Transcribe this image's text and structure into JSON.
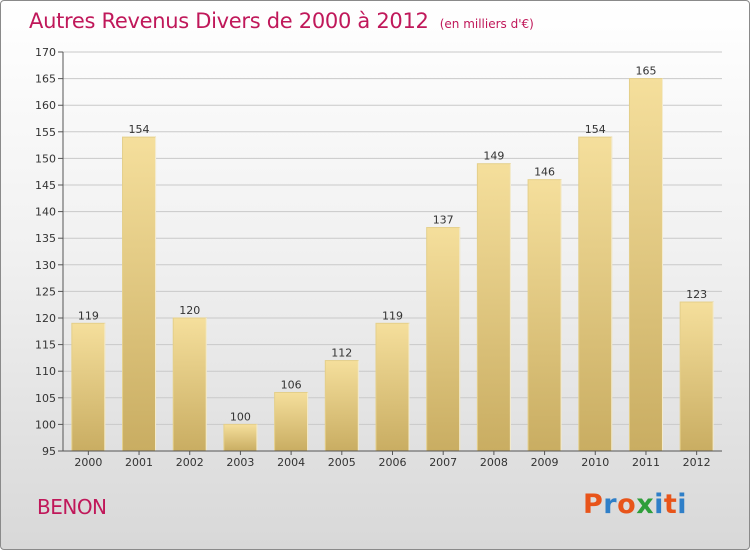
{
  "header": {
    "title": "Autres Revenus Divers de 2000 à 2012",
    "unit": "(en milliers d'€)"
  },
  "footer": {
    "commune": "BENON",
    "logo_text": "Proxiti"
  },
  "colors": {
    "title": "#c0185a",
    "bar_light": "#f5df9c",
    "bar_dark": "#c9ad62",
    "logo_letters": [
      "#e8541a",
      "#2f7fc8",
      "#e8541a",
      "#2e9e3a",
      "#2f7fc8",
      "#e8541a",
      "#2f7fc8"
    ]
  },
  "chart_data": {
    "type": "bar",
    "title": "Autres Revenus Divers de 2000 à 2012",
    "subtitle": "(en milliers d'€)",
    "xlabel": "",
    "ylabel": "",
    "categories": [
      "2000",
      "2001",
      "2002",
      "2003",
      "2004",
      "2005",
      "2006",
      "2007",
      "2008",
      "2009",
      "2010",
      "2011",
      "2012"
    ],
    "values": [
      119,
      154,
      120,
      100,
      106,
      112,
      119,
      137,
      149,
      146,
      154,
      165,
      123
    ],
    "ylim": [
      95,
      170
    ],
    "yticks": [
      95,
      100,
      105,
      110,
      115,
      120,
      125,
      130,
      135,
      140,
      145,
      150,
      155,
      160,
      165,
      170
    ],
    "grid": true,
    "legend": "none"
  }
}
